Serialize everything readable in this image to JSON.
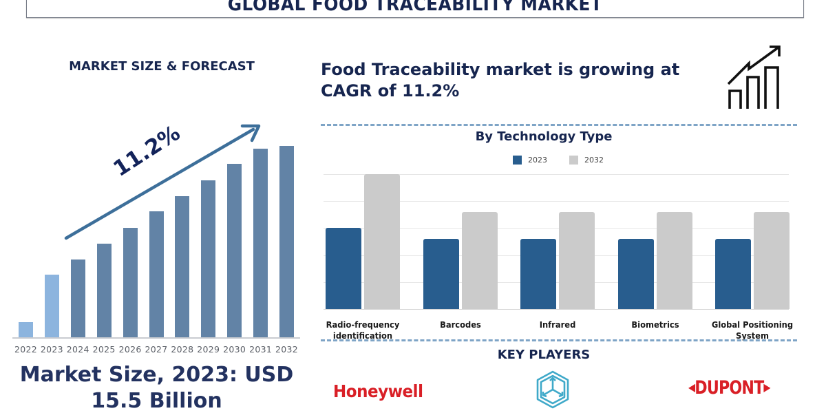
{
  "header": {
    "title": "GLOBAL FOOD TRACEABILITY MARKET"
  },
  "left": {
    "heading": "MARKET SIZE & FORECAST",
    "cagr_label": "11.2%",
    "market_size_line1": "Market Size, 2023: USD",
    "market_size_line2": "15.5 Billion"
  },
  "right": {
    "headline_line1": "Food Traceability market is growing at",
    "headline_line2": "CAGR of 11.2%",
    "key_players_title": "KEY PLAYERS",
    "key_players": [
      "Honeywell",
      "Cube logo (unnamed)",
      "DUPONT"
    ]
  },
  "colors": {
    "navy": "#16254f",
    "bar_historical": "#8cb4de",
    "bar_forecast": "#6283a6",
    "series_2023": "#285d8e",
    "series_2032": "#cbcbcb",
    "logo_red": "#d91f26",
    "logo_teal": "#3fa9c9"
  },
  "chart_data": [
    {
      "type": "bar",
      "title": "MARKET SIZE & FORECAST",
      "categories": [
        "2022",
        "2023",
        "2024",
        "2025",
        "2026",
        "2027",
        "2028",
        "2029",
        "2030",
        "2031",
        "2032"
      ],
      "values": [
        22,
        91,
        113,
        136,
        159,
        183,
        205,
        228,
        252,
        274,
        278
      ],
      "value_units": "relative bar height (px), no axis shown",
      "bar_style": [
        "historical",
        "historical",
        "forecast",
        "forecast",
        "forecast",
        "forecast",
        "forecast",
        "forecast",
        "forecast",
        "forecast",
        "forecast"
      ],
      "annotation": "11.2%",
      "xlabel": "",
      "ylabel": "",
      "grid": false
    },
    {
      "type": "bar",
      "title": "By Technology Type",
      "categories": [
        "Radio-frequency identification",
        "Barcodes",
        "Infrared",
        "Biometrics",
        "Global Positioning System"
      ],
      "series": [
        {
          "name": "2023",
          "values": [
            3.0,
            2.6,
            2.6,
            2.6,
            2.6
          ]
        },
        {
          "name": "2032",
          "values": [
            5.0,
            3.6,
            3.6,
            3.6,
            3.6
          ]
        }
      ],
      "value_units": "gridline units (no tick labels shown)",
      "ylim": [
        0,
        5
      ],
      "grid": true,
      "legend_position": "top"
    }
  ]
}
